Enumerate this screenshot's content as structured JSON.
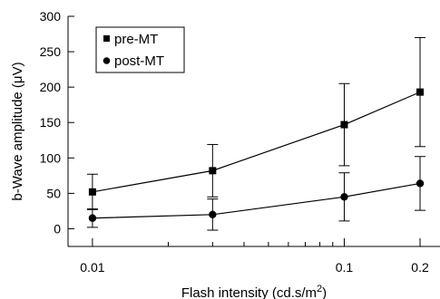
{
  "chart_data": {
    "type": "line",
    "title": "",
    "xlabel": "Flash intensity (cd.s/m",
    "xlabel_superscript": "2",
    "xlabel_suffix": ")",
    "ylabel": "b-Wave amplitude (μV)",
    "xscale": "log",
    "xlim": [
      0.008,
      0.24
    ],
    "ylim": [
      -25,
      300
    ],
    "xticks": [
      {
        "value": 0.01,
        "label": "0.01"
      },
      {
        "value": 0.1,
        "label": "0.1"
      },
      {
        "value": 0.2,
        "label": "0.2"
      }
    ],
    "yticks": [
      0,
      50,
      100,
      150,
      200,
      250,
      300
    ],
    "grid": false,
    "legend_position": "top-left",
    "x": [
      0.01,
      0.03,
      0.1,
      0.2
    ],
    "series": [
      {
        "name": "pre-MT",
        "marker": "square",
        "values": [
          52,
          82,
          147,
          193
        ],
        "error": [
          25,
          37,
          58,
          77
        ]
      },
      {
        "name": "post-MT",
        "marker": "circle",
        "values": [
          15,
          20,
          45,
          64
        ],
        "error": [
          13,
          22,
          34,
          38
        ]
      }
    ]
  }
}
